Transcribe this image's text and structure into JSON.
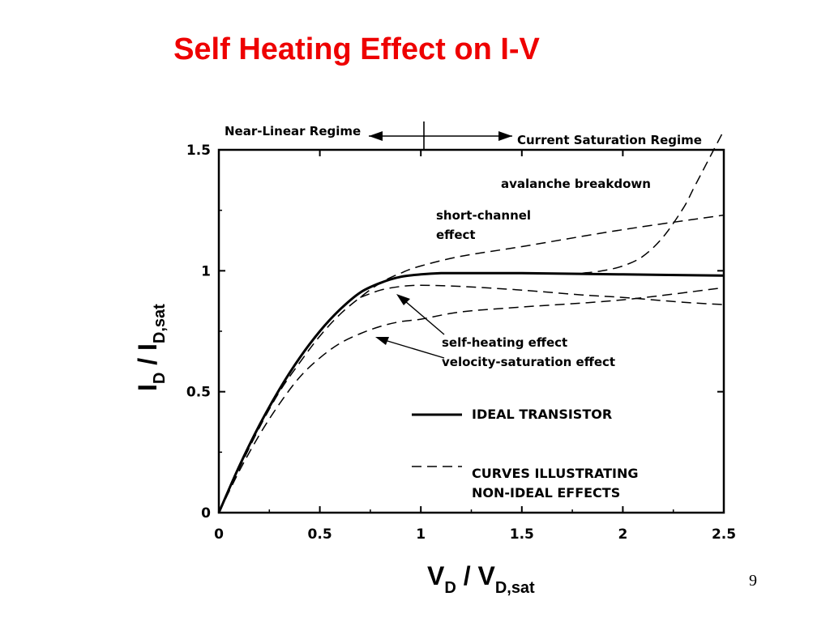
{
  "slide": {
    "title": "Self Heating Effect on I-V",
    "page_number": "9"
  },
  "chart_data": {
    "type": "line",
    "xlabel": {
      "main": "V",
      "sub": "D",
      "sep": " / V",
      "sub2": "D,sat"
    },
    "ylabel": {
      "main": "I",
      "sub": "D",
      "sep": " / I",
      "sub2": "D,sat"
    },
    "xlim": [
      0,
      2.5
    ],
    "ylim": [
      0,
      1.5
    ],
    "x_ticks": [
      "0",
      "0.5",
      "1",
      "1.5",
      "2",
      "2.5"
    ],
    "y_ticks": [
      "0",
      "0.5",
      "1",
      "1.5"
    ],
    "regimes": {
      "left": "Near-Linear  Regime",
      "right": "Current  Saturation  Regime",
      "boundary_x": 1.0
    },
    "annotations": {
      "avalanche": "avalanche  breakdown",
      "short_channel_1": "short-channel",
      "short_channel_2": "effect",
      "self_heating": "self-heating   effect",
      "velocity_saturation": "velocity-saturation    effect"
    },
    "legend": {
      "ideal": "IDEAL  TRANSISTOR",
      "nonideal_1": "CURVES  ILLUSTRATING",
      "nonideal_2": "NON-IDEAL  EFFECTS"
    },
    "series": [
      {
        "name": "IDEAL  TRANSISTOR",
        "style": "solid",
        "x": [
          0,
          0.1,
          0.2,
          0.3,
          0.4,
          0.5,
          0.6,
          0.7,
          0.8,
          0.9,
          1.0,
          1.1,
          1.2,
          1.5,
          2.0,
          2.5
        ],
        "y": [
          0,
          0.19,
          0.36,
          0.51,
          0.64,
          0.75,
          0.84,
          0.91,
          0.95,
          0.975,
          0.985,
          0.99,
          0.99,
          0.99,
          0.985,
          0.98
        ]
      },
      {
        "name": "avalanche  breakdown",
        "style": "dashed",
        "x": [
          1.8,
          1.9,
          2.0,
          2.1,
          2.2,
          2.3,
          2.35,
          2.4,
          2.45,
          2.5
        ],
        "y": [
          0.99,
          1.0,
          1.02,
          1.06,
          1.14,
          1.26,
          1.34,
          1.42,
          1.5,
          1.58
        ]
      },
      {
        "name": "short-channel effect",
        "style": "dashed",
        "x": [
          0,
          0.1,
          0.2,
          0.3,
          0.4,
          0.5,
          0.6,
          0.7,
          0.8,
          0.9,
          1.0,
          1.2,
          1.5,
          2.0,
          2.5
        ],
        "y": [
          0,
          0.18,
          0.35,
          0.5,
          0.62,
          0.73,
          0.82,
          0.89,
          0.95,
          0.99,
          1.02,
          1.06,
          1.1,
          1.17,
          1.23
        ]
      },
      {
        "name": "self-heating effect",
        "style": "dashed",
        "x": [
          0.7,
          0.8,
          0.9,
          1.0,
          1.2,
          1.5,
          1.8,
          2.0,
          2.3,
          2.5
        ],
        "y": [
          0.89,
          0.92,
          0.935,
          0.94,
          0.935,
          0.92,
          0.9,
          0.89,
          0.87,
          0.86
        ]
      },
      {
        "name": "velocity-saturation effect",
        "style": "dashed",
        "x": [
          0,
          0.1,
          0.2,
          0.3,
          0.4,
          0.5,
          0.6,
          0.7,
          0.8,
          0.9,
          1.0,
          1.2,
          1.5,
          2.0,
          2.5
        ],
        "y": [
          0,
          0.17,
          0.32,
          0.45,
          0.56,
          0.64,
          0.7,
          0.74,
          0.77,
          0.79,
          0.8,
          0.83,
          0.85,
          0.88,
          0.93
        ]
      }
    ]
  }
}
